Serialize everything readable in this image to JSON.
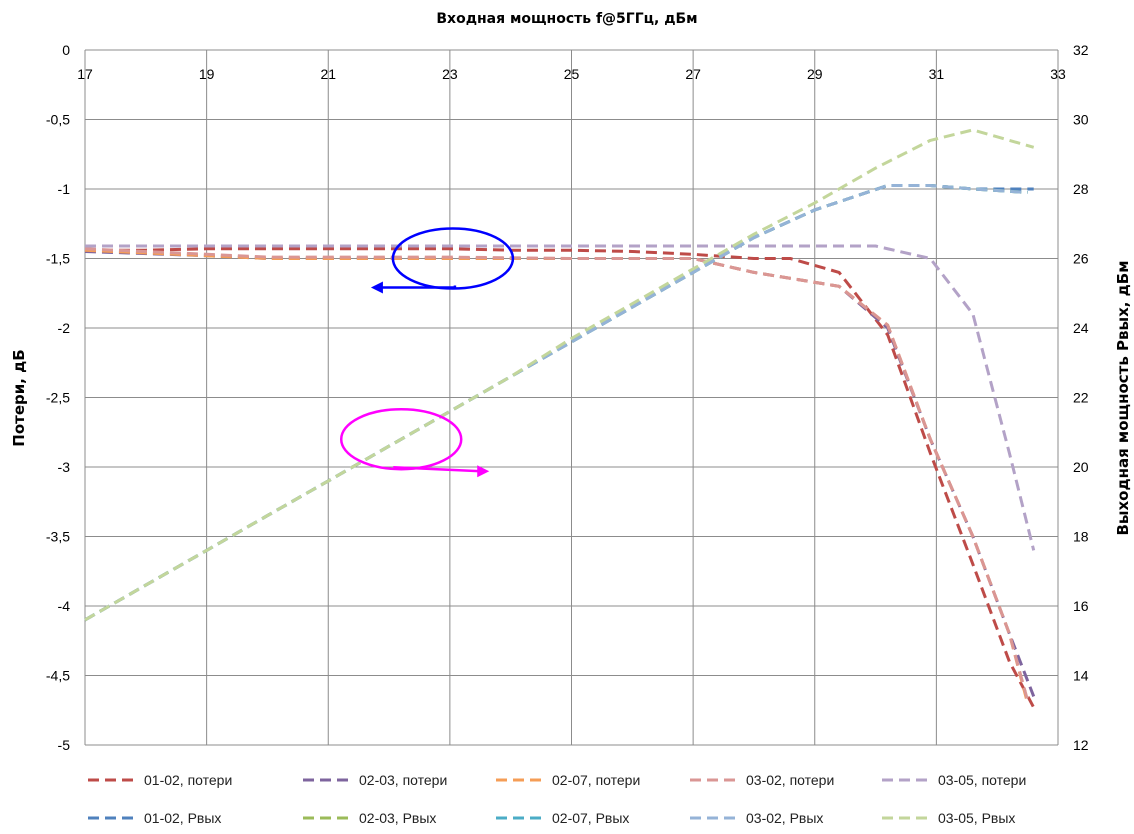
{
  "chart_data": {
    "type": "line",
    "title": "Входная мощность f@5ГГц, дБм",
    "xlabel": "Входная мощность f@5ГГц, дБм",
    "ylabel_left": "Потери, дБ",
    "ylabel_right": "Выходная мощность Рвых, дБм",
    "xlim": [
      17,
      33
    ],
    "x_ticks": [
      "17",
      "19",
      "21",
      "23",
      "25",
      "27",
      "29",
      "31",
      "33"
    ],
    "ylim_left": [
      -5,
      0
    ],
    "y_ticks_left": [
      "0",
      "-0,5",
      "-1",
      "-1,5",
      "-2",
      "-2,5",
      "-3",
      "-3,5",
      "-4",
      "-4,5",
      "-5"
    ],
    "ylim_right": [
      12,
      32
    ],
    "y_ticks_right": [
      "32",
      "30",
      "28",
      "26",
      "24",
      "22",
      "20",
      "18",
      "16",
      "14",
      "12"
    ],
    "grid": true,
    "legend_position": "bottom",
    "series": [
      {
        "name": "01-02, потери",
        "axis": "left",
        "color": "#be4b48",
        "style": "dashed",
        "x": [
          17,
          18,
          19,
          20,
          21,
          22,
          23,
          24,
          25,
          26,
          27,
          28,
          28.6,
          29.4,
          30.2,
          30.9,
          31.6,
          32.2,
          32.6
        ],
        "y": [
          -1.44,
          -1.44,
          -1.43,
          -1.43,
          -1.43,
          -1.43,
          -1.43,
          -1.44,
          -1.44,
          -1.45,
          -1.47,
          -1.5,
          -1.5,
          -1.6,
          -2.05,
          -2.9,
          -3.7,
          -4.4,
          -4.73
        ]
      },
      {
        "name": "02-03, потери",
        "axis": "left",
        "color": "#7e649e",
        "style": "dashed",
        "x": [
          17,
          19,
          20,
          21,
          23,
          25,
          27,
          28,
          29.4,
          30.2,
          30.9,
          31.6,
          32.2,
          32.6
        ],
        "y": [
          -1.45,
          -1.48,
          -1.5,
          -1.5,
          -1.5,
          -1.5,
          -1.5,
          -1.6,
          -1.7,
          -2.0,
          -2.8,
          -3.5,
          -4.2,
          -4.65
        ]
      },
      {
        "name": "02-07, потери",
        "axis": "left",
        "color": "#f59d56",
        "style": "dashed",
        "x": [
          17,
          19,
          20,
          21,
          23,
          25,
          27,
          28,
          29.4,
          30.2,
          30.9,
          31.6,
          32.2,
          32.5
        ],
        "y": [
          -1.44,
          -1.48,
          -1.5,
          -1.5,
          -1.5,
          -1.5,
          -1.5,
          -1.6,
          -1.7,
          -1.98,
          -2.8,
          -3.5,
          -4.2,
          -4.7
        ]
      },
      {
        "name": "03-02, потери",
        "axis": "left",
        "color": "#da9694",
        "style": "dashed",
        "x": [
          17,
          19,
          20,
          21,
          23,
          25,
          27,
          28,
          29.4,
          30.2,
          30.9,
          31.6,
          32.2,
          32.5
        ],
        "y": [
          -1.43,
          -1.47,
          -1.49,
          -1.49,
          -1.49,
          -1.5,
          -1.5,
          -1.6,
          -1.7,
          -1.98,
          -2.8,
          -3.5,
          -4.2,
          -4.68
        ]
      },
      {
        "name": "03-05, потери",
        "axis": "left",
        "color": "#b3a2c7",
        "style": "dashed",
        "x": [
          17,
          19,
          21,
          23,
          25,
          27,
          29,
          30,
          30.9,
          31.6,
          32.2,
          32.6
        ],
        "y": [
          -1.41,
          -1.41,
          -1.41,
          -1.41,
          -1.41,
          -1.41,
          -1.41,
          -1.41,
          -1.5,
          -1.9,
          -2.9,
          -3.6
        ]
      },
      {
        "name": "01-02, Рвых",
        "axis": "right",
        "color": "#4f81bd",
        "style": "dashed",
        "x": [
          17,
          18,
          19,
          20,
          21,
          22,
          23,
          24,
          25,
          26,
          27,
          28,
          29,
          30.2,
          30.9,
          31.6,
          32.6
        ],
        "y": [
          15.6,
          16.6,
          17.6,
          18.6,
          19.6,
          20.6,
          21.6,
          22.6,
          23.6,
          24.6,
          25.6,
          26.6,
          27.4,
          28.1,
          28.1,
          28.0,
          28.0
        ]
      },
      {
        "name": "02-03, Рвых",
        "axis": "right",
        "color": "#9bbb59",
        "style": "dashed",
        "x": [
          17,
          18,
          19,
          20,
          21,
          22,
          23,
          24,
          25,
          26,
          27,
          28,
          29,
          30.2,
          30.9,
          31.6,
          32.5
        ],
        "y": [
          15.6,
          16.6,
          17.6,
          18.6,
          19.6,
          20.6,
          21.6,
          22.6,
          23.6,
          24.6,
          25.6,
          26.6,
          27.4,
          28.1,
          28.1,
          28.0,
          27.9
        ]
      },
      {
        "name": "02-07, Рвых",
        "axis": "right",
        "color": "#4bacc6",
        "style": "dashed",
        "x": [
          17,
          18,
          19,
          20,
          21,
          22,
          23,
          24,
          25,
          26,
          27,
          28,
          29,
          30.2,
          30.9,
          31.6,
          32.5
        ],
        "y": [
          15.6,
          16.6,
          17.6,
          18.6,
          19.6,
          20.6,
          21.6,
          22.6,
          23.6,
          24.6,
          25.6,
          26.6,
          27.4,
          28.1,
          28.1,
          28.0,
          27.9
        ]
      },
      {
        "name": "03-02, Рвых",
        "axis": "right",
        "color": "#95b3d7",
        "style": "dashed",
        "x": [
          17,
          18,
          19,
          20,
          21,
          22,
          23,
          24,
          25,
          26,
          27,
          28,
          29,
          30.2,
          30.9,
          31.6,
          32.5
        ],
        "y": [
          15.6,
          16.6,
          17.6,
          18.6,
          19.6,
          20.6,
          21.6,
          22.6,
          23.6,
          24.6,
          25.6,
          26.6,
          27.4,
          28.1,
          28.1,
          28.0,
          27.9
        ]
      },
      {
        "name": "03-05, Рвых",
        "axis": "right",
        "color": "#c3d69b",
        "style": "dashed",
        "x": [
          17,
          18,
          19,
          20,
          21,
          22,
          23,
          24,
          25,
          26,
          27,
          28,
          29,
          30,
          30.9,
          31.6,
          32.6
        ],
        "y": [
          15.6,
          16.6,
          17.6,
          18.6,
          19.6,
          20.6,
          21.6,
          22.6,
          23.7,
          24.7,
          25.7,
          26.7,
          27.6,
          28.6,
          29.4,
          29.7,
          29.2
        ]
      }
    ],
    "annotations": [
      {
        "shape": "ellipse",
        "color": "#0000ff",
        "points_to": "left axis",
        "center_x": 23.05,
        "center_left_y": -1.5
      },
      {
        "shape": "ellipse",
        "color": "#ff00ff",
        "points_to": "right axis",
        "center_x": 22.2,
        "center_left_y": -2.8
      }
    ]
  }
}
